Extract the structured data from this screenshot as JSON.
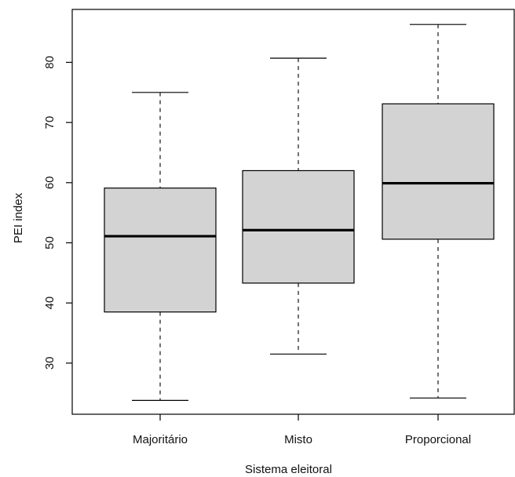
{
  "chart_data": {
    "type": "boxplot",
    "title": "",
    "xlabel": "Sistema eleitoral",
    "ylabel": "PEI index",
    "categories": [
      "Majoritário",
      "Misto",
      "Proporcional"
    ],
    "boxes": [
      {
        "category": "Majoritário",
        "whisker_low": 23.8,
        "q1": 38.5,
        "median": 51.1,
        "q3": 59.1,
        "whisker_high": 75.0
      },
      {
        "category": "Misto",
        "whisker_low": 31.5,
        "q1": 43.3,
        "median": 52.1,
        "q3": 62.0,
        "whisker_high": 80.7
      },
      {
        "category": "Proporcional",
        "whisker_low": 24.2,
        "q1": 50.6,
        "median": 59.9,
        "q3": 73.1,
        "whisker_high": 86.3
      }
    ],
    "yticks": [
      30,
      40,
      50,
      60,
      70,
      80
    ],
    "ylim": [
      21.5,
      88.8
    ],
    "grid": false,
    "colors": {
      "box_fill": "#d3d3d3",
      "stroke": "#000000",
      "background": "#ffffff"
    }
  }
}
